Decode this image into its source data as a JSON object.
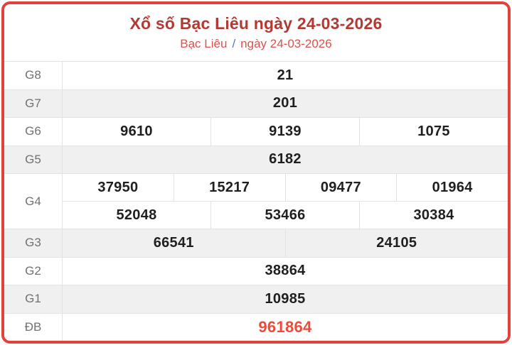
{
  "header": {
    "title": "Xổ số Bạc Liêu ngày 24-03-2026",
    "subtitle_location": "Bạc Liêu",
    "subtitle_separator": "/",
    "subtitle_date": "ngày 24-03-2026"
  },
  "colors": {
    "border_red": "#e2413c",
    "title_red": "#b13a33",
    "subtitle_red": "#d9534f",
    "slash_blue": "#4a7bd0",
    "special_red": "#ef4b3a",
    "row_alt_bg": "#f0f0f0",
    "cell_border": "#e3e3e3",
    "label_gray": "#717171",
    "number_dark": "#1f1f1f"
  },
  "table": {
    "rows": [
      {
        "label": "G8",
        "groups": [
          [
            "21"
          ]
        ]
      },
      {
        "label": "G7",
        "groups": [
          [
            "201"
          ]
        ]
      },
      {
        "label": "G6",
        "groups": [
          [
            "9610",
            "9139",
            "1075"
          ]
        ]
      },
      {
        "label": "G5",
        "groups": [
          [
            "6182"
          ]
        ]
      },
      {
        "label": "G4",
        "groups": [
          [
            "37950",
            "15217",
            "09477",
            "01964"
          ],
          [
            "52048",
            "53466",
            "30384"
          ]
        ]
      },
      {
        "label": "G3",
        "groups": [
          [
            "66541",
            "24105"
          ]
        ]
      },
      {
        "label": "G2",
        "groups": [
          [
            "38864"
          ]
        ]
      },
      {
        "label": "G1",
        "groups": [
          [
            "10985"
          ]
        ]
      },
      {
        "label": "ĐB",
        "groups": [
          [
            "961864"
          ]
        ]
      }
    ]
  }
}
